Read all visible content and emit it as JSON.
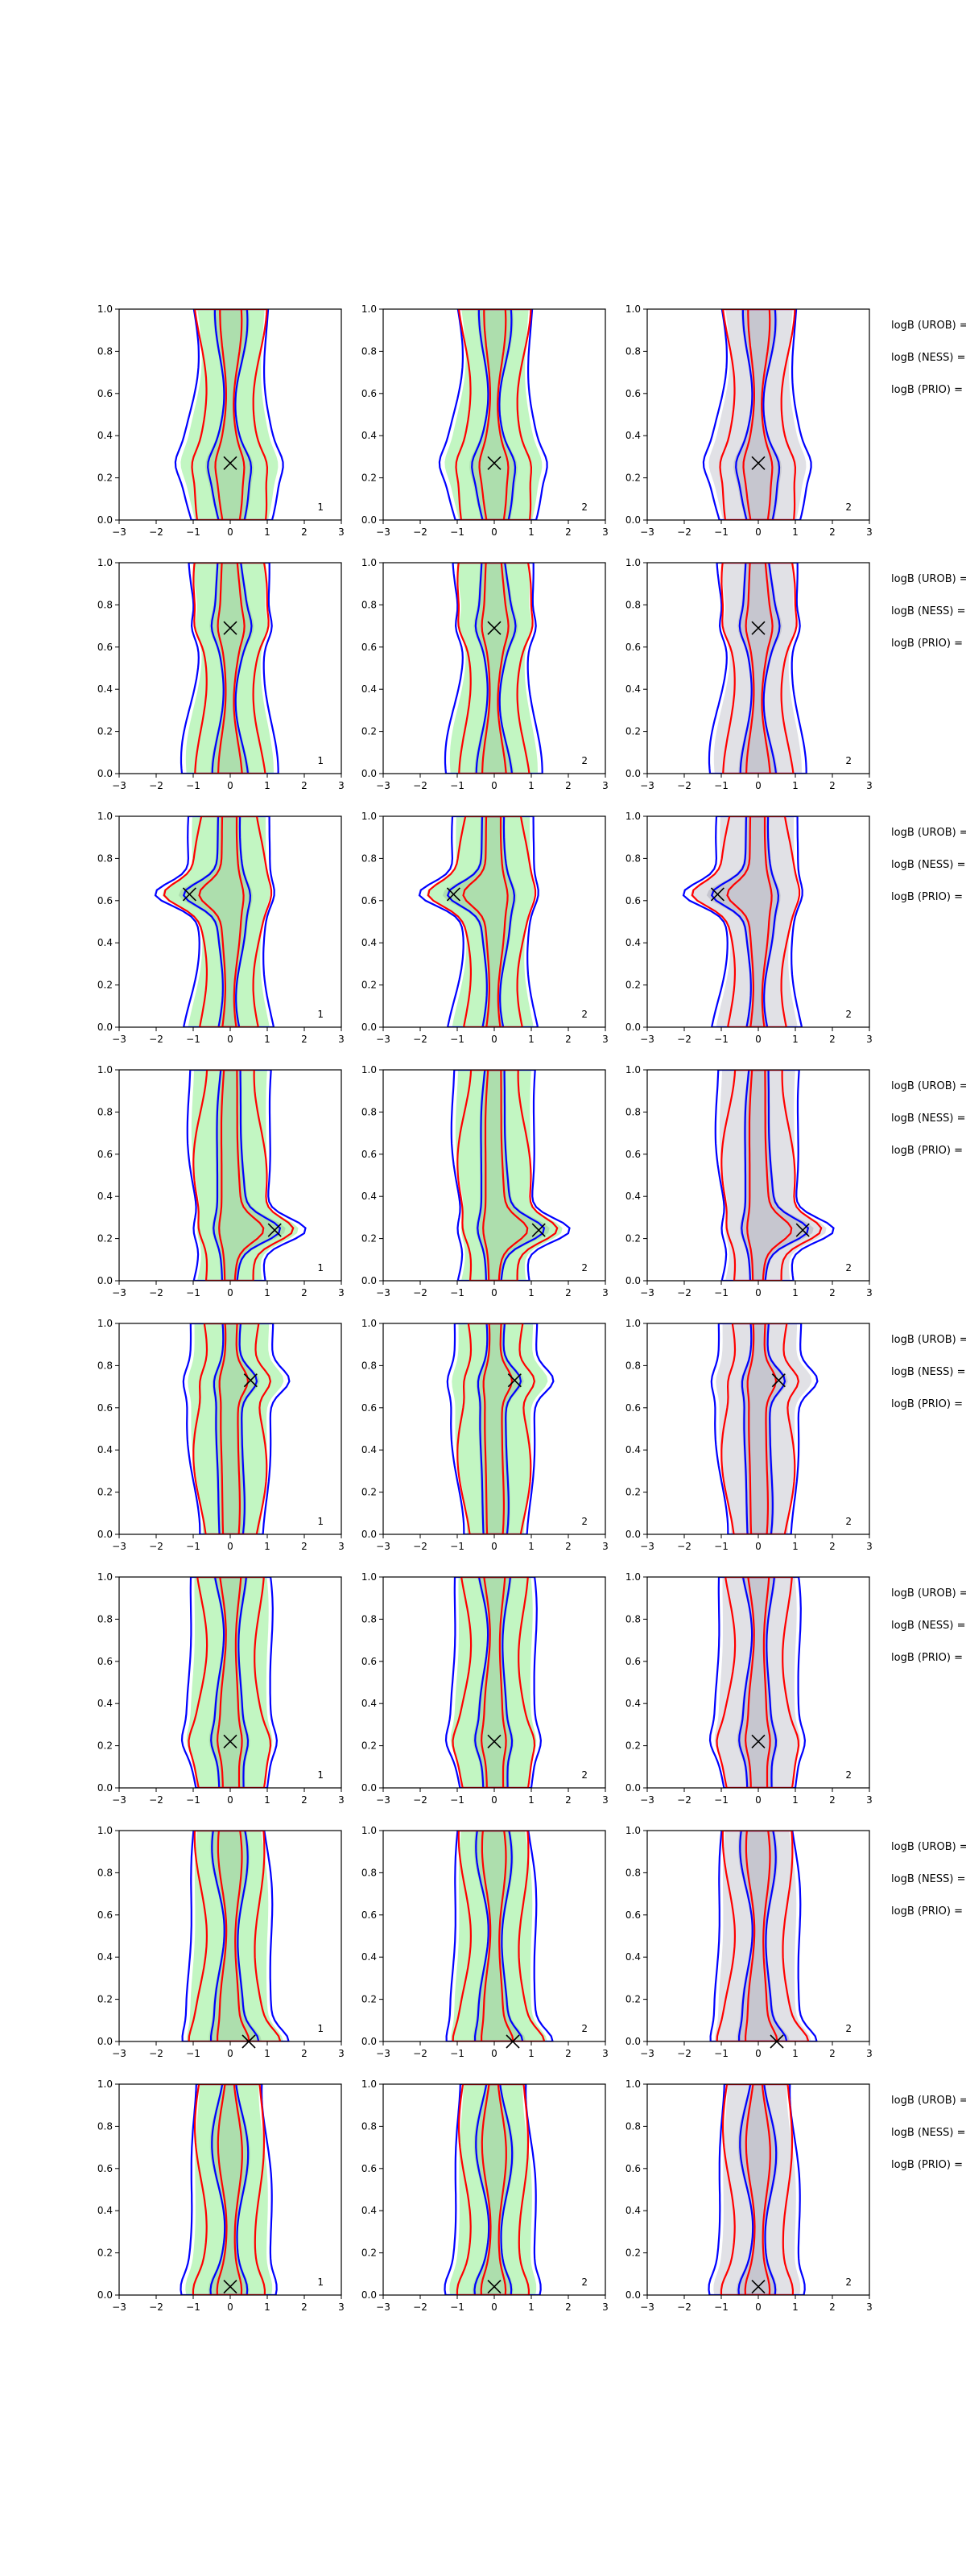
{
  "figure": {
    "layout": "8 rows x 3 columns of density contour panels with per-row annotation",
    "colors": {
      "filled_density_green": "#90ee90",
      "filled_density_gray": "#c8c8d2",
      "contour_blue": "#0000ff",
      "contour_red": "#ff0000",
      "marker": "#000000"
    }
  },
  "chart_data": {
    "type": "contour",
    "axes": {
      "xlim": [
        -3,
        3
      ],
      "ylim": [
        0,
        1
      ],
      "xticks": [
        "−3",
        "−2",
        "−1",
        "0",
        "1",
        "2",
        "3"
      ],
      "yticks": [
        "0.0",
        "0.2",
        "0.4",
        "0.6",
        "0.8",
        "1.0"
      ],
      "grid": false
    },
    "panel_corner_labels": [
      "1",
      "2",
      "2"
    ],
    "row_annotations": [
      "logB (UROB) =",
      "logB (NESS) =",
      "logB (PRIO) ="
    ],
    "rows": [
      {
        "marker": [
          0.0,
          0.27
        ],
        "label_col1": "1",
        "label_col2": "2",
        "label_col3": "2"
      },
      {
        "marker": [
          0.0,
          0.69
        ],
        "label_col1": "1",
        "label_col2": "2",
        "label_col3": "2"
      },
      {
        "marker": [
          -1.1,
          0.63
        ],
        "label_col1": "1",
        "label_col2": "2",
        "label_col3": "2"
      },
      {
        "marker": [
          1.2,
          0.24
        ],
        "label_col1": "1",
        "label_col2": "2",
        "label_col3": "2"
      },
      {
        "marker": [
          0.55,
          0.73
        ],
        "label_col1": "1",
        "label_col2": "2",
        "label_col3": "2"
      },
      {
        "marker": [
          0.0,
          0.22
        ],
        "label_col1": "1",
        "label_col2": "2",
        "label_col3": "2"
      },
      {
        "marker": [
          0.5,
          0.0
        ],
        "label_col1": "1",
        "label_col2": "2",
        "label_col3": "2"
      },
      {
        "marker": [
          0.0,
          0.04
        ],
        "label_col1": "1",
        "label_col2": "2",
        "label_col3": "2"
      }
    ]
  }
}
